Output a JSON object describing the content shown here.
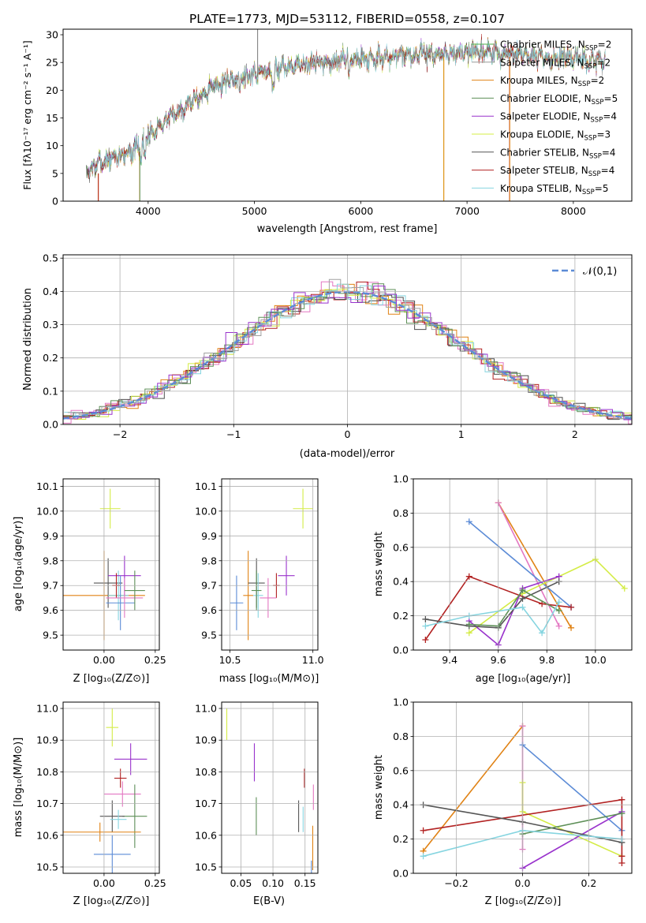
{
  "chart_data": [
    {
      "panel": "spectrum",
      "type": "line",
      "title": "PLATE=1773, MJD=53112, FIBERID=0558, z=0.107",
      "xlabel": "wavelength [Angstrom, rest frame]",
      "ylabel": "Flux [fλ10⁻¹⁷ erg cm⁻² s⁻¹ A⁻¹]",
      "xlim": [
        3200,
        8550
      ],
      "ylim": [
        0,
        31
      ],
      "xticks": [
        "4000",
        "5000",
        "6000",
        "7000",
        "8000"
      ],
      "yticks": [
        "0",
        "5",
        "10",
        "15",
        "20",
        "25",
        "30"
      ],
      "grid": false,
      "legend_placement": "upper-right",
      "continuum": {
        "x": [
          3420,
          3550,
          3700,
          3900,
          4000,
          4200,
          4400,
          4600,
          4800,
          5000,
          5200,
          5400,
          5600,
          5800,
          6000,
          6200,
          6400,
          6600,
          6800,
          7000,
          7200,
          7400,
          7600,
          7800,
          8000,
          8200,
          8300
        ],
        "y": [
          5.2,
          7.0,
          8.0,
          9.5,
          12.0,
          15.0,
          18.0,
          20.5,
          22.0,
          23.0,
          23.8,
          24.5,
          25.0,
          25.4,
          25.7,
          25.9,
          26.1,
          26.3,
          26.5,
          26.8,
          26.9,
          26.5,
          26.0,
          25.8,
          25.6,
          25.3,
          25.2
        ]
      },
      "series": [
        {
          "name": "Chabrier MILES, N",
          "sub": "SSP",
          "suffix": "=2",
          "color": "#4daf4a"
        },
        {
          "name": "Salpeter MILES, N",
          "sub": "SSP",
          "suffix": "=2",
          "color": "#999999"
        },
        {
          "name": "Kroupa MILES, N",
          "sub": "SSP",
          "suffix": "=2",
          "color": "#e08214"
        },
        {
          "name": "Chabrier ELODIE, N",
          "sub": "SSP",
          "suffix": "=5",
          "color": "#5d8f57"
        },
        {
          "name": "Salpeter ELODIE, N",
          "sub": "SSP",
          "suffix": "=4",
          "color": "#9932cc"
        },
        {
          "name": "Kroupa ELODIE, N",
          "sub": "SSP",
          "suffix": "=3",
          "color": "#d4ec46"
        },
        {
          "name": "Chabrier STELIB, N",
          "sub": "SSP",
          "suffix": "=4",
          "color": "#555555"
        },
        {
          "name": "Salpeter STELIB, N",
          "sub": "SSP",
          "suffix": "=4",
          "color": "#b22222"
        },
        {
          "name": "Kroupa STELIB, N",
          "sub": "SSP",
          "suffix": "=5",
          "color": "#86d5e0"
        }
      ]
    },
    {
      "panel": "residuals",
      "type": "histogram",
      "xlabel": "(data-model)/error",
      "ylabel": "Normed distribution",
      "xlim": [
        -2.5,
        2.5
      ],
      "ylim": [
        0,
        0.51
      ],
      "xticks": [
        "−2",
        "−1",
        "0",
        "1",
        "2"
      ],
      "yticks": [
        "0.0",
        "0.1",
        "0.2",
        "0.3",
        "0.4",
        "0.5"
      ],
      "grid": true,
      "bin_width": 0.1,
      "legend": "𝒩(0,1)",
      "legend_placement": "upper-right",
      "reference_color": "#5b8bd6",
      "hist_colors": [
        "#e08214",
        "#e377c2",
        "#b22222",
        "#4d4d4d",
        "#d4ec46",
        "#86d5e0",
        "#5d8f57",
        "#9932cc",
        "#a0a0a0"
      ]
    },
    {
      "panel": "age-vs-Z",
      "type": "errorbar",
      "xlabel": "Z [log₁₀(Z/Z⊙)]",
      "ylabel": "age  [log₁₀(age/yr)]",
      "xlim": [
        -0.2,
        0.27
      ],
      "ylim": [
        9.44,
        10.13
      ],
      "xticks": [
        {
          "v": 0.0,
          "t": "0.00"
        },
        {
          "v": 0.25,
          "t": "0.25"
        }
      ],
      "yticks": [
        {
          "v": 9.5,
          "t": "9.5"
        },
        {
          "v": 9.6,
          "t": "9.6"
        },
        {
          "v": 9.7,
          "t": "9.7"
        },
        {
          "v": 9.8,
          "t": "9.8"
        },
        {
          "v": 9.9,
          "t": "9.9"
        },
        {
          "v": 10.0,
          "t": "10.0"
        },
        {
          "v": 10.1,
          "t": "10.1"
        }
      ],
      "grid": true,
      "points": [
        {
          "x": 0.03,
          "y": 10.01,
          "xerr": 0.05,
          "yerr": 0.08,
          "color": "#d4ec46"
        },
        {
          "x": 0.0,
          "y": 9.66,
          "xerr": 0.2,
          "yerr": 0.18,
          "color": "#e08214"
        },
        {
          "x": 0.02,
          "y": 9.71,
          "xerr": 0.07,
          "yerr": 0.1,
          "color": "#555555"
        },
        {
          "x": 0.07,
          "y": 9.66,
          "xerr": 0.05,
          "yerr": 0.1,
          "color": "#86d5e0"
        },
        {
          "x": 0.1,
          "y": 9.74,
          "xerr": 0.08,
          "yerr": 0.08,
          "color": "#9932cc"
        },
        {
          "x": 0.06,
          "y": 9.7,
          "xerr": 0.02,
          "yerr": 0.05,
          "color": "#b22222"
        },
        {
          "x": 0.08,
          "y": 9.63,
          "xerr": 0.07,
          "yerr": 0.11,
          "color": "#5b8bd6"
        },
        {
          "x": 0.1,
          "y": 9.65,
          "xerr": 0.09,
          "yerr": 0.08,
          "color": "#e377c2"
        },
        {
          "x": 0.15,
          "y": 9.68,
          "xerr": 0.05,
          "yerr": 0.08,
          "color": "#5d8f57"
        }
      ]
    },
    {
      "panel": "age-vs-mass",
      "type": "errorbar",
      "xlabel": "mass [log₁₀(M/M⊙)]",
      "xlim": [
        10.45,
        11.03
      ],
      "ylim": [
        9.44,
        10.13
      ],
      "xticks": [
        {
          "v": 10.5,
          "t": "10.5"
        },
        {
          "v": 11.0,
          "t": "11.0"
        }
      ],
      "yticks": [
        {
          "v": 9.5,
          "t": "9.5"
        },
        {
          "v": 9.6,
          "t": "9.6"
        },
        {
          "v": 9.7,
          "t": "9.7"
        },
        {
          "v": 9.8,
          "t": "9.8"
        },
        {
          "v": 9.9,
          "t": "9.9"
        },
        {
          "v": 10.0,
          "t": "10.0"
        },
        {
          "v": 10.1,
          "t": "10.1"
        }
      ],
      "grid": true,
      "points": [
        {
          "x": 10.94,
          "y": 10.01,
          "xerr": 0.06,
          "yerr": 0.08,
          "color": "#d4ec46"
        },
        {
          "x": 10.61,
          "y": 9.66,
          "xerr": 0.03,
          "yerr": 0.18,
          "color": "#e08214"
        },
        {
          "x": 10.66,
          "y": 9.71,
          "xerr": 0.05,
          "yerr": 0.1,
          "color": "#555555"
        },
        {
          "x": 10.67,
          "y": 9.66,
          "xerr": 0.03,
          "yerr": 0.09,
          "color": "#86d5e0"
        },
        {
          "x": 10.84,
          "y": 9.74,
          "xerr": 0.05,
          "yerr": 0.08,
          "color": "#9932cc"
        },
        {
          "x": 10.78,
          "y": 9.7,
          "xerr": 0.02,
          "yerr": 0.05,
          "color": "#b22222"
        },
        {
          "x": 10.54,
          "y": 9.63,
          "xerr": 0.04,
          "yerr": 0.11,
          "color": "#5b8bd6"
        },
        {
          "x": 10.73,
          "y": 9.65,
          "xerr": 0.05,
          "yerr": 0.08,
          "color": "#e377c2"
        },
        {
          "x": 10.66,
          "y": 9.68,
          "xerr": 0.03,
          "yerr": 0.08,
          "color": "#5d8f57"
        }
      ]
    },
    {
      "panel": "weight-vs-age",
      "type": "line",
      "xlabel": "age  [log₁₀(age/yr)]",
      "ylabel": "mass weight",
      "xlim": [
        9.25,
        10.15
      ],
      "ylim": [
        0,
        1.0
      ],
      "xticks": [
        {
          "v": 9.4,
          "t": "9.4"
        },
        {
          "v": 9.6,
          "t": "9.6"
        },
        {
          "v": 9.8,
          "t": "9.8"
        },
        {
          "v": 10.0,
          "t": "10.0"
        }
      ],
      "yticks": [
        {
          "v": 0,
          "t": "0.0"
        },
        {
          "v": 0.2,
          "t": "0.2"
        },
        {
          "v": 0.4,
          "t": "0.4"
        },
        {
          "v": 0.6,
          "t": "0.6"
        },
        {
          "v": 0.8,
          "t": "0.8"
        },
        {
          "v": 1.0,
          "t": "1.0"
        }
      ],
      "grid": true,
      "series": [
        {
          "color": "#e08214",
          "x": [
            9.6,
            9.9
          ],
          "y": [
            0.86,
            0.13
          ]
        },
        {
          "color": "#e377c2",
          "x": [
            9.6,
            9.85
          ],
          "y": [
            0.86,
            0.14
          ]
        },
        {
          "color": "#5b8bd6",
          "x": [
            9.48,
            9.9
          ],
          "y": [
            0.75,
            0.25
          ]
        },
        {
          "color": "#d4ec46",
          "x": [
            9.48,
            9.7,
            10.0,
            10.12
          ],
          "y": [
            0.1,
            0.33,
            0.53,
            0.36
          ]
        },
        {
          "color": "#b22222",
          "x": [
            9.3,
            9.48,
            9.78,
            9.9
          ],
          "y": [
            0.06,
            0.43,
            0.27,
            0.25
          ]
        },
        {
          "color": "#9932cc",
          "x": [
            9.48,
            9.6,
            9.7,
            9.85
          ],
          "y": [
            0.17,
            0.03,
            0.36,
            0.43
          ]
        },
        {
          "color": "#555555",
          "x": [
            9.3,
            9.48,
            9.6,
            9.7,
            9.85
          ],
          "y": [
            0.18,
            0.14,
            0.13,
            0.3,
            0.4
          ]
        },
        {
          "color": "#5d8f57",
          "x": [
            9.48,
            9.6,
            9.7,
            9.85
          ],
          "y": [
            0.15,
            0.14,
            0.35,
            0.23
          ]
        },
        {
          "color": "#86d5e0",
          "x": [
            9.3,
            9.48,
            9.7,
            9.78,
            9.85
          ],
          "y": [
            0.14,
            0.2,
            0.25,
            0.1,
            0.28
          ]
        }
      ]
    },
    {
      "panel": "mass-vs-Z",
      "type": "errorbar",
      "xlabel": "Z [log₁₀(Z/Z⊙)]",
      "ylabel": "mass [log₁₀(M/M⊙)]",
      "xlim": [
        -0.2,
        0.27
      ],
      "ylim": [
        10.48,
        11.02
      ],
      "xticks": [
        {
          "v": 0.0,
          "t": "0.00"
        },
        {
          "v": 0.25,
          "t": "0.25"
        }
      ],
      "yticks": [
        {
          "v": 10.5,
          "t": "10.5"
        },
        {
          "v": 10.6,
          "t": "10.6"
        },
        {
          "v": 10.7,
          "t": "10.7"
        },
        {
          "v": 10.8,
          "t": "10.8"
        },
        {
          "v": 10.9,
          "t": "10.9"
        },
        {
          "v": 11.0,
          "t": "11.0"
        }
      ],
      "grid": true,
      "points": [
        {
          "x": 0.04,
          "y": 10.94,
          "xerr": 0.03,
          "yerr": 0.06,
          "color": "#d4ec46"
        },
        {
          "x": 0.13,
          "y": 10.84,
          "xerr": 0.08,
          "yerr": 0.05,
          "color": "#9932cc"
        },
        {
          "x": 0.08,
          "y": 10.78,
          "xerr": 0.03,
          "yerr": 0.03,
          "color": "#b22222"
        },
        {
          "x": 0.09,
          "y": 10.73,
          "xerr": 0.09,
          "yerr": 0.04,
          "color": "#e377c2"
        },
        {
          "x": 0.15,
          "y": 10.66,
          "xerr": 0.06,
          "yerr": 0.1,
          "color": "#5d8f57"
        },
        {
          "x": 0.04,
          "y": 10.66,
          "xerr": 0.06,
          "yerr": 0.05,
          "color": "#555555"
        },
        {
          "x": 0.07,
          "y": 10.65,
          "xerr": 0.04,
          "yerr": 0.03,
          "color": "#86d5e0"
        },
        {
          "x": -0.02,
          "y": 10.61,
          "xerr": 0.2,
          "yerr": 0.03,
          "color": "#e08214"
        },
        {
          "x": 0.04,
          "y": 10.54,
          "xerr": 0.09,
          "yerr": 0.06,
          "color": "#5b8bd6"
        }
      ]
    },
    {
      "panel": "mass-vs-EBV",
      "type": "errorbar",
      "xlabel": "E(B-V)",
      "xlim": [
        0.02,
        0.17
      ],
      "ylim": [
        10.48,
        11.02
      ],
      "xticks": [
        {
          "v": 0.05,
          "t": "0.05"
        },
        {
          "v": 0.1,
          "t": "0.10"
        },
        {
          "v": 0.15,
          "t": "0.15"
        }
      ],
      "yticks": [
        {
          "v": 10.5,
          "t": "10.5"
        },
        {
          "v": 10.6,
          "t": "10.6"
        },
        {
          "v": 10.7,
          "t": "10.7"
        },
        {
          "v": 10.8,
          "t": "10.8"
        },
        {
          "v": 10.9,
          "t": "10.9"
        },
        {
          "v": 11.0,
          "t": "11.0"
        }
      ],
      "grid": true,
      "points": [
        {
          "x": 0.028,
          "y": 10.95,
          "xerr": 0.0,
          "yerr": 0.05,
          "color": "#d4ec46"
        },
        {
          "x": 0.071,
          "y": 10.83,
          "xerr": 0.0,
          "yerr": 0.06,
          "color": "#9932cc"
        },
        {
          "x": 0.074,
          "y": 10.66,
          "xerr": 0.0,
          "yerr": 0.06,
          "color": "#5d8f57"
        },
        {
          "x": 0.14,
          "y": 10.66,
          "xerr": 0.0,
          "yerr": 0.05,
          "color": "#555555"
        },
        {
          "x": 0.147,
          "y": 10.65,
          "xerr": 0.0,
          "yerr": 0.04,
          "color": "#86d5e0"
        },
        {
          "x": 0.149,
          "y": 10.78,
          "xerr": 0.0,
          "yerr": 0.03,
          "color": "#b22222"
        },
        {
          "x": 0.163,
          "y": 10.72,
          "xerr": 0.0,
          "yerr": 0.04,
          "color": "#e377c2"
        },
        {
          "x": 0.162,
          "y": 10.56,
          "xerr": 0.0,
          "yerr": 0.07,
          "color": "#e08214"
        },
        {
          "x": 0.16,
          "y": 10.5,
          "xerr": 0.0,
          "yerr": 0.02,
          "color": "#5b8bd6"
        }
      ]
    },
    {
      "panel": "weight-vs-Z",
      "type": "line",
      "xlabel": "Z [log₁₀(Z/Z⊙)]",
      "ylabel": "mass weight",
      "xlim": [
        -0.33,
        0.33
      ],
      "ylim": [
        0,
        1.0
      ],
      "xticks": [
        {
          "v": -0.2,
          "t": "−0.2"
        },
        {
          "v": 0.0,
          "t": "0.0"
        },
        {
          "v": 0.2,
          "t": "0.2"
        }
      ],
      "yticks": [
        {
          "v": 0,
          "t": "0.0"
        },
        {
          "v": 0.2,
          "t": "0.2"
        },
        {
          "v": 0.4,
          "t": "0.4"
        },
        {
          "v": 0.6,
          "t": "0.6"
        },
        {
          "v": 0.8,
          "t": "0.8"
        },
        {
          "v": 1.0,
          "t": "1.0"
        }
      ],
      "grid": true,
      "series": [
        {
          "color": "#e08214",
          "x": [
            -0.3,
            0.0
          ],
          "y": [
            0.13,
            0.86
          ]
        },
        {
          "color": "#e377c2",
          "x": [
            0.0,
            0.0
          ],
          "y": [
            0.86,
            0.14
          ]
        },
        {
          "color": "#5b8bd6",
          "x": [
            0.0,
            0.3
          ],
          "y": [
            0.75,
            0.25
          ]
        },
        {
          "color": "#d4ec46",
          "x": [
            0.0,
            0.0,
            0.3
          ],
          "y": [
            0.53,
            0.36,
            0.1
          ]
        },
        {
          "color": "#b22222",
          "x": [
            -0.3,
            0.3,
            0.3,
            0.3
          ],
          "y": [
            0.25,
            0.43,
            0.1,
            0.06
          ]
        },
        {
          "color": "#9932cc",
          "x": [
            0.0,
            0.3
          ],
          "y": [
            0.03,
            0.36
          ]
        },
        {
          "color": "#555555",
          "x": [
            -0.3,
            0.0,
            0.3
          ],
          "y": [
            0.4,
            0.3,
            0.18
          ]
        },
        {
          "color": "#5d8f57",
          "x": [
            0.0,
            0.3
          ],
          "y": [
            0.23,
            0.35
          ]
        },
        {
          "color": "#86d5e0",
          "x": [
            -0.3,
            0.0,
            0.3
          ],
          "y": [
            0.1,
            0.25,
            0.2
          ]
        }
      ]
    }
  ]
}
